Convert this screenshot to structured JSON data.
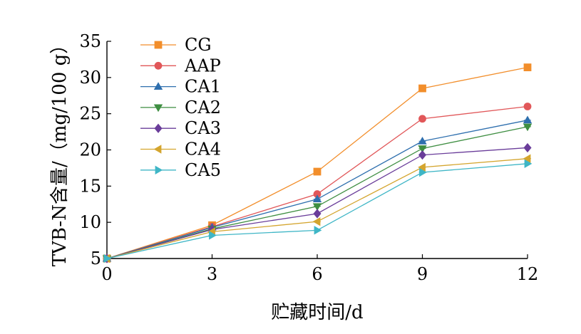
{
  "chart_data": {
    "type": "line",
    "xlabel": "贮藏时间/d",
    "ylabel": "TVB-N含量/（mg/100 g）",
    "x": [
      0,
      3,
      6,
      9,
      12
    ],
    "xlim": [
      0,
      12
    ],
    "ylim": [
      5,
      35
    ],
    "xticks": [
      "0",
      "3",
      "6",
      "9",
      "12"
    ],
    "yticks": [
      "5",
      "10",
      "15",
      "20",
      "25",
      "30",
      "35"
    ],
    "grid": false,
    "legend": "top-left",
    "series": [
      {
        "name": "CG",
        "color": "#F28E2B",
        "marker": "square",
        "values": [
          5.0,
          9.6,
          17.0,
          28.5,
          31.4
        ]
      },
      {
        "name": "AAP",
        "color": "#E15759",
        "marker": "circle",
        "values": [
          5.0,
          9.4,
          13.9,
          24.3,
          26.0
        ]
      },
      {
        "name": "CA1",
        "color": "#2E6FAE",
        "marker": "triangle-up",
        "values": [
          5.0,
          9.3,
          13.2,
          21.2,
          24.1
        ]
      },
      {
        "name": "CA2",
        "color": "#3E8E41",
        "marker": "triangle-down",
        "values": [
          5.0,
          9.1,
          12.2,
          20.2,
          23.2
        ]
      },
      {
        "name": "CA3",
        "color": "#6A3D9A",
        "marker": "diamond",
        "values": [
          5.0,
          9.0,
          11.2,
          19.3,
          20.3
        ]
      },
      {
        "name": "CA4",
        "color": "#D4A52E",
        "marker": "triangle-left",
        "values": [
          5.0,
          8.7,
          10.1,
          17.6,
          18.8
        ]
      },
      {
        "name": "CA5",
        "color": "#3FB6C6",
        "marker": "triangle-right",
        "values": [
          5.0,
          8.2,
          8.9,
          16.9,
          18.1
        ]
      }
    ]
  }
}
